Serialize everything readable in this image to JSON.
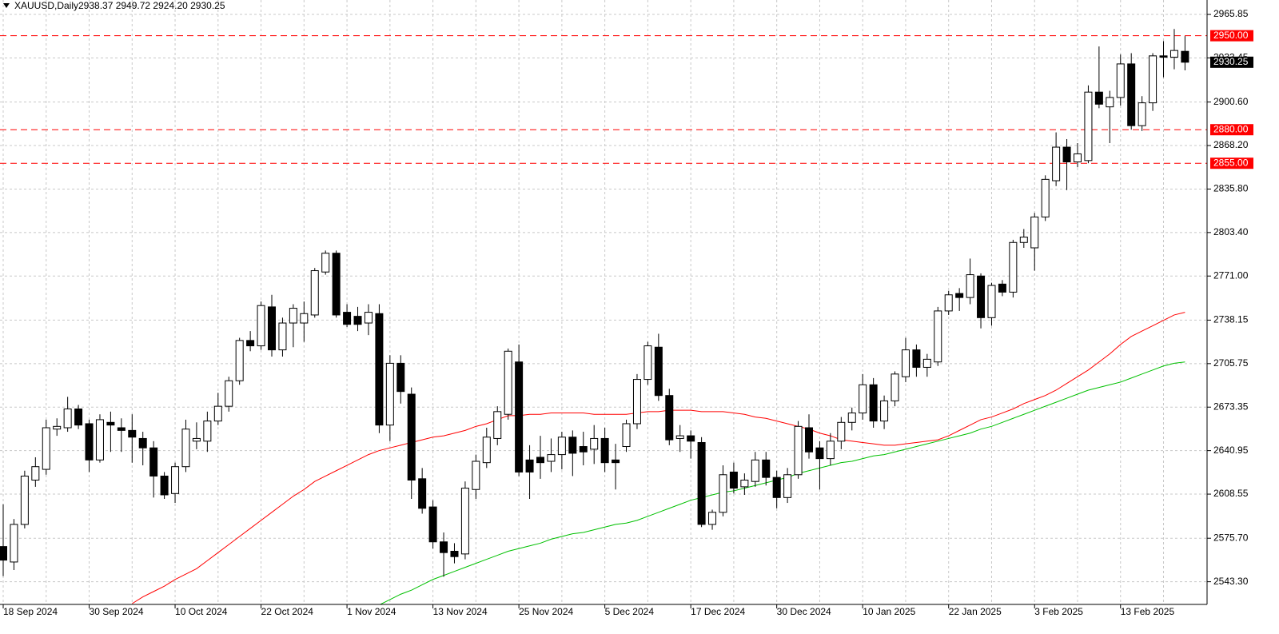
{
  "chart_data": {
    "type": "candlestick",
    "title": "XAUUSD,Daily",
    "subtitle": "2938.37 2949.72 2924.20 2930.25",
    "categories": [
      "18 Sep 2024",
      null,
      null,
      null,
      null,
      null,
      null,
      null,
      "30 Sep 2024",
      null,
      null,
      null,
      null,
      null,
      null,
      null,
      "10 Oct 2024",
      null,
      null,
      null,
      null,
      null,
      null,
      null,
      "22 Oct 2024",
      null,
      null,
      null,
      null,
      null,
      null,
      null,
      "1 Nov 2024",
      null,
      null,
      null,
      null,
      null,
      null,
      null,
      "13 Nov 2024",
      null,
      null,
      null,
      null,
      null,
      null,
      null,
      "25 Nov 2024",
      null,
      null,
      null,
      null,
      null,
      null,
      null,
      "5 Dec 2024",
      null,
      null,
      null,
      null,
      null,
      null,
      null,
      "17 Dec 2024",
      null,
      null,
      null,
      null,
      null,
      null,
      null,
      "30 Dec 2024",
      null,
      null,
      null,
      null,
      null,
      null,
      null,
      "10 Jan 2025",
      null,
      null,
      null,
      null,
      null,
      null,
      null,
      "22 Jan 2025",
      null,
      null,
      null,
      null,
      null,
      null,
      null,
      "3 Feb 2025",
      null,
      null,
      null,
      null,
      null,
      null,
      null,
      "13 Feb 2025",
      null,
      null,
      null,
      null,
      null,
      null
    ],
    "open": [
      2569.5,
      2558,
      2586,
      2619,
      2627,
      2657,
      2658,
      2672,
      2661,
      2634,
      2662,
      2658,
      2656,
      2650,
      2643,
      2622,
      2609,
      2629,
      2648,
      2648,
      2663,
      2674,
      2693,
      2723,
      2719,
      2748,
      2716,
      2736,
      2736,
      2742,
      2774,
      2788,
      2744,
      2741,
      2736,
      2743,
      2660,
      2706,
      2683,
      2620,
      2599,
      2573,
      2566,
      2564,
      2612,
      2632,
      2650,
      2668,
      2707,
      2634,
      2636,
      2633,
      2638,
      2651,
      2644,
      2642,
      2650,
      2634,
      2644,
      2661,
      2694,
      2718,
      2682,
      2650,
      2652,
      2647,
      2586,
      2595,
      2625,
      2614,
      2618,
      2634,
      2621,
      2606,
      2623,
      2658,
      2643,
      2635,
      2648,
      2662,
      2669,
      2690,
      2663,
      2678,
      2696,
      2716,
      2703,
      2707,
      2745,
      2758,
      2755,
      2771,
      2740,
      2765,
      2759,
      2796,
      2792,
      2815,
      2842,
      2867,
      2856,
      2857,
      2908,
      2897,
      2904,
      2929,
      2883,
      2900,
      2935,
      2934,
      2938.37
    ],
    "high": [
      2601,
      2590,
      2626,
      2636,
      2664,
      2665,
      2681,
      2675,
      2664,
      2668,
      2670,
      2665,
      2668,
      2655,
      2648,
      2625,
      2632,
      2664,
      2662,
      2670,
      2684,
      2696,
      2725,
      2730,
      2752,
      2757,
      2740,
      2750,
      2752,
      2777,
      2790,
      2790,
      2750,
      2748,
      2750,
      2750,
      2712,
      2712,
      2688,
      2628,
      2604,
      2580,
      2572,
      2618,
      2638,
      2658,
      2674,
      2717,
      2720,
      2645,
      2652,
      2650,
      2655,
      2656,
      2655,
      2660,
      2658,
      2646,
      2664,
      2698,
      2722,
      2728,
      2687,
      2660,
      2656,
      2651,
      2597,
      2630,
      2632,
      2624,
      2640,
      2640,
      2626,
      2628,
      2663,
      2668,
      2648,
      2654,
      2666,
      2673,
      2698,
      2695,
      2682,
      2700,
      2725,
      2720,
      2713,
      2748,
      2760,
      2762,
      2784,
      2773,
      2766,
      2768,
      2798,
      2806,
      2818,
      2846,
      2878,
      2873,
      2870,
      2913,
      2942,
      2909,
      2936,
      2937,
      2905,
      2937,
      2946,
      2955,
      2949.72
    ],
    "low": [
      2547.5,
      2552,
      2583,
      2614,
      2623,
      2652,
      2655,
      2657,
      2625,
      2632,
      2640,
      2640,
      2632,
      2630,
      2606,
      2605,
      2602,
      2625,
      2642,
      2640,
      2660,
      2670,
      2690,
      2715,
      2716,
      2711,
      2711,
      2718,
      2722,
      2740,
      2772,
      2740,
      2733,
      2730,
      2727,
      2654,
      2648,
      2676,
      2605,
      2594,
      2568,
      2547,
      2557,
      2560,
      2605,
      2628,
      2645,
      2664,
      2622,
      2605,
      2620,
      2625,
      2627,
      2622,
      2630,
      2631,
      2625,
      2612,
      2640,
      2657,
      2690,
      2678,
      2645,
      2640,
      2635,
      2584,
      2582,
      2592,
      2609,
      2608,
      2614,
      2615,
      2598,
      2602,
      2620,
      2635,
      2612,
      2630,
      2642,
      2656,
      2664,
      2658,
      2657,
      2674,
      2692,
      2696,
      2696,
      2704,
      2742,
      2745,
      2750,
      2732,
      2734,
      2756,
      2755,
      2792,
      2775,
      2812,
      2838,
      2835,
      2852,
      2855,
      2896,
      2870,
      2898,
      2880,
      2879,
      2894,
      2919,
      2925,
      2924.2
    ],
    "close": [
      2559.4,
      2586,
      2622,
      2629,
      2658,
      2659,
      2672,
      2660,
      2634,
      2664,
      2660,
      2656,
      2651,
      2643,
      2622,
      2608,
      2629,
      2657,
      2650,
      2663,
      2674,
      2693,
      2723,
      2719,
      2749,
      2716,
      2736,
      2747,
      2743,
      2775,
      2788,
      2742,
      2735,
      2735,
      2744,
      2660,
      2706,
      2685,
      2619,
      2598,
      2573,
      2565,
      2562,
      2613,
      2633,
      2651,
      2670,
      2715,
      2625,
      2625,
      2632,
      2638,
      2651,
      2639,
      2640,
      2650,
      2632,
      2632,
      2661,
      2694,
      2719,
      2682,
      2649,
      2652,
      2648,
      2586,
      2595,
      2623,
      2613,
      2619,
      2634,
      2621,
      2606,
      2623,
      2659,
      2640,
      2635,
      2648,
      2662,
      2669,
      2690,
      2663,
      2678,
      2698,
      2716,
      2703,
      2709,
      2745,
      2757,
      2755,
      2772,
      2740,
      2764,
      2759,
      2796,
      2800,
      2815,
      2843,
      2867,
      2856,
      2862,
      2908,
      2899,
      2904,
      2929,
      2883,
      2900,
      2935,
      2934,
      2939,
      2930.25
    ],
    "up_color": "#ffffff",
    "down_color": "#000000",
    "series": [
      {
        "color": "#ff0000",
        "values": [
          null,
          null,
          null,
          null,
          null,
          null,
          null,
          null,
          null,
          null,
          null,
          null,
          2527,
          2532,
          2536,
          2540,
          2545,
          2549,
          2553,
          2559,
          2565,
          2571,
          2577,
          2583,
          2589,
          2595,
          2601,
          2607,
          2612,
          2618,
          2622,
          2626,
          2630,
          2634,
          2638,
          2641,
          2643,
          2645,
          2647,
          2649,
          2651,
          2652,
          2654,
          2656,
          2659,
          2661,
          2664,
          2667,
          2667,
          2668,
          2668,
          2669,
          2669,
          2669,
          2669,
          2668,
          2668,
          2668,
          2668,
          2669,
          2670,
          2670,
          2671,
          2671,
          2671,
          2670,
          2670,
          2670,
          2669,
          2668,
          2666,
          2665,
          2663,
          2661,
          2659,
          2657,
          2654,
          2652,
          2649,
          2648,
          2647,
          2646,
          2645,
          2645,
          2646,
          2647,
          2648,
          2649,
          2652,
          2656,
          2660,
          2664,
          2666,
          2669,
          2672,
          2676,
          2679,
          2682,
          2686,
          2691,
          2696,
          2701,
          2707,
          2713,
          2720,
          2726,
          2730,
          2734,
          2738,
          2742,
          2744
        ]
      },
      {
        "color": "#00c000",
        "values": [
          null,
          null,
          null,
          null,
          null,
          null,
          null,
          null,
          null,
          null,
          null,
          null,
          null,
          null,
          null,
          null,
          null,
          null,
          null,
          null,
          null,
          null,
          null,
          null,
          null,
          null,
          null,
          null,
          null,
          null,
          null,
          null,
          null,
          null,
          null,
          2526,
          2530,
          2534,
          2537,
          2541,
          2545,
          2548,
          2551,
          2554,
          2557,
          2560,
          2563,
          2566,
          2568,
          2570,
          2572,
          2575,
          2577,
          2579,
          2580,
          2582,
          2584,
          2586,
          2587,
          2589,
          2592,
          2595,
          2598,
          2601,
          2604,
          2606,
          2608,
          2610,
          2611,
          2613,
          2615,
          2617,
          2619,
          2621,
          2624,
          2626,
          2628,
          2630,
          2632,
          2633,
          2635,
          2637,
          2638,
          2640,
          2642,
          2644,
          2646,
          2648,
          2650,
          2652,
          2654,
          2657,
          2659,
          2662,
          2665,
          2668,
          2671,
          2674,
          2677,
          2680,
          2683,
          2686,
          2688,
          2690,
          2692,
          2695,
          2698,
          2701,
          2704,
          2706,
          2707
        ]
      }
    ],
    "levels": [
      {
        "value": 2950,
        "label": "2950.00"
      },
      {
        "value": 2880,
        "label": "2880.00"
      },
      {
        "value": 2855,
        "label": "2855.00"
      }
    ],
    "level_color": "#ff0000",
    "ylim": [
      2526.4,
      2976.6
    ],
    "yticks": [
      {
        "value": 2965.85,
        "label": "2965.85"
      },
      {
        "value": 2933.45,
        "label": "2933.45"
      },
      {
        "value": 2900.6,
        "label": "2900.60"
      },
      {
        "value": 2868.2,
        "label": "2868.20"
      },
      {
        "value": 2835.8,
        "label": "2835.80"
      },
      {
        "value": 2803.4,
        "label": "2803.40"
      },
      {
        "value": 2771,
        "label": "2771.00"
      },
      {
        "value": 2738.15,
        "label": "2738.15"
      },
      {
        "value": 2705.75,
        "label": "2705.75"
      },
      {
        "value": 2673.35,
        "label": "2673.35"
      },
      {
        "value": 2640.95,
        "label": "2640.95"
      },
      {
        "value": 2608.55,
        "label": "2608.55"
      },
      {
        "value": 2575.7,
        "label": "2575.70"
      },
      {
        "value": 2543.3,
        "label": "2543.30"
      }
    ],
    "grid": true
  }
}
